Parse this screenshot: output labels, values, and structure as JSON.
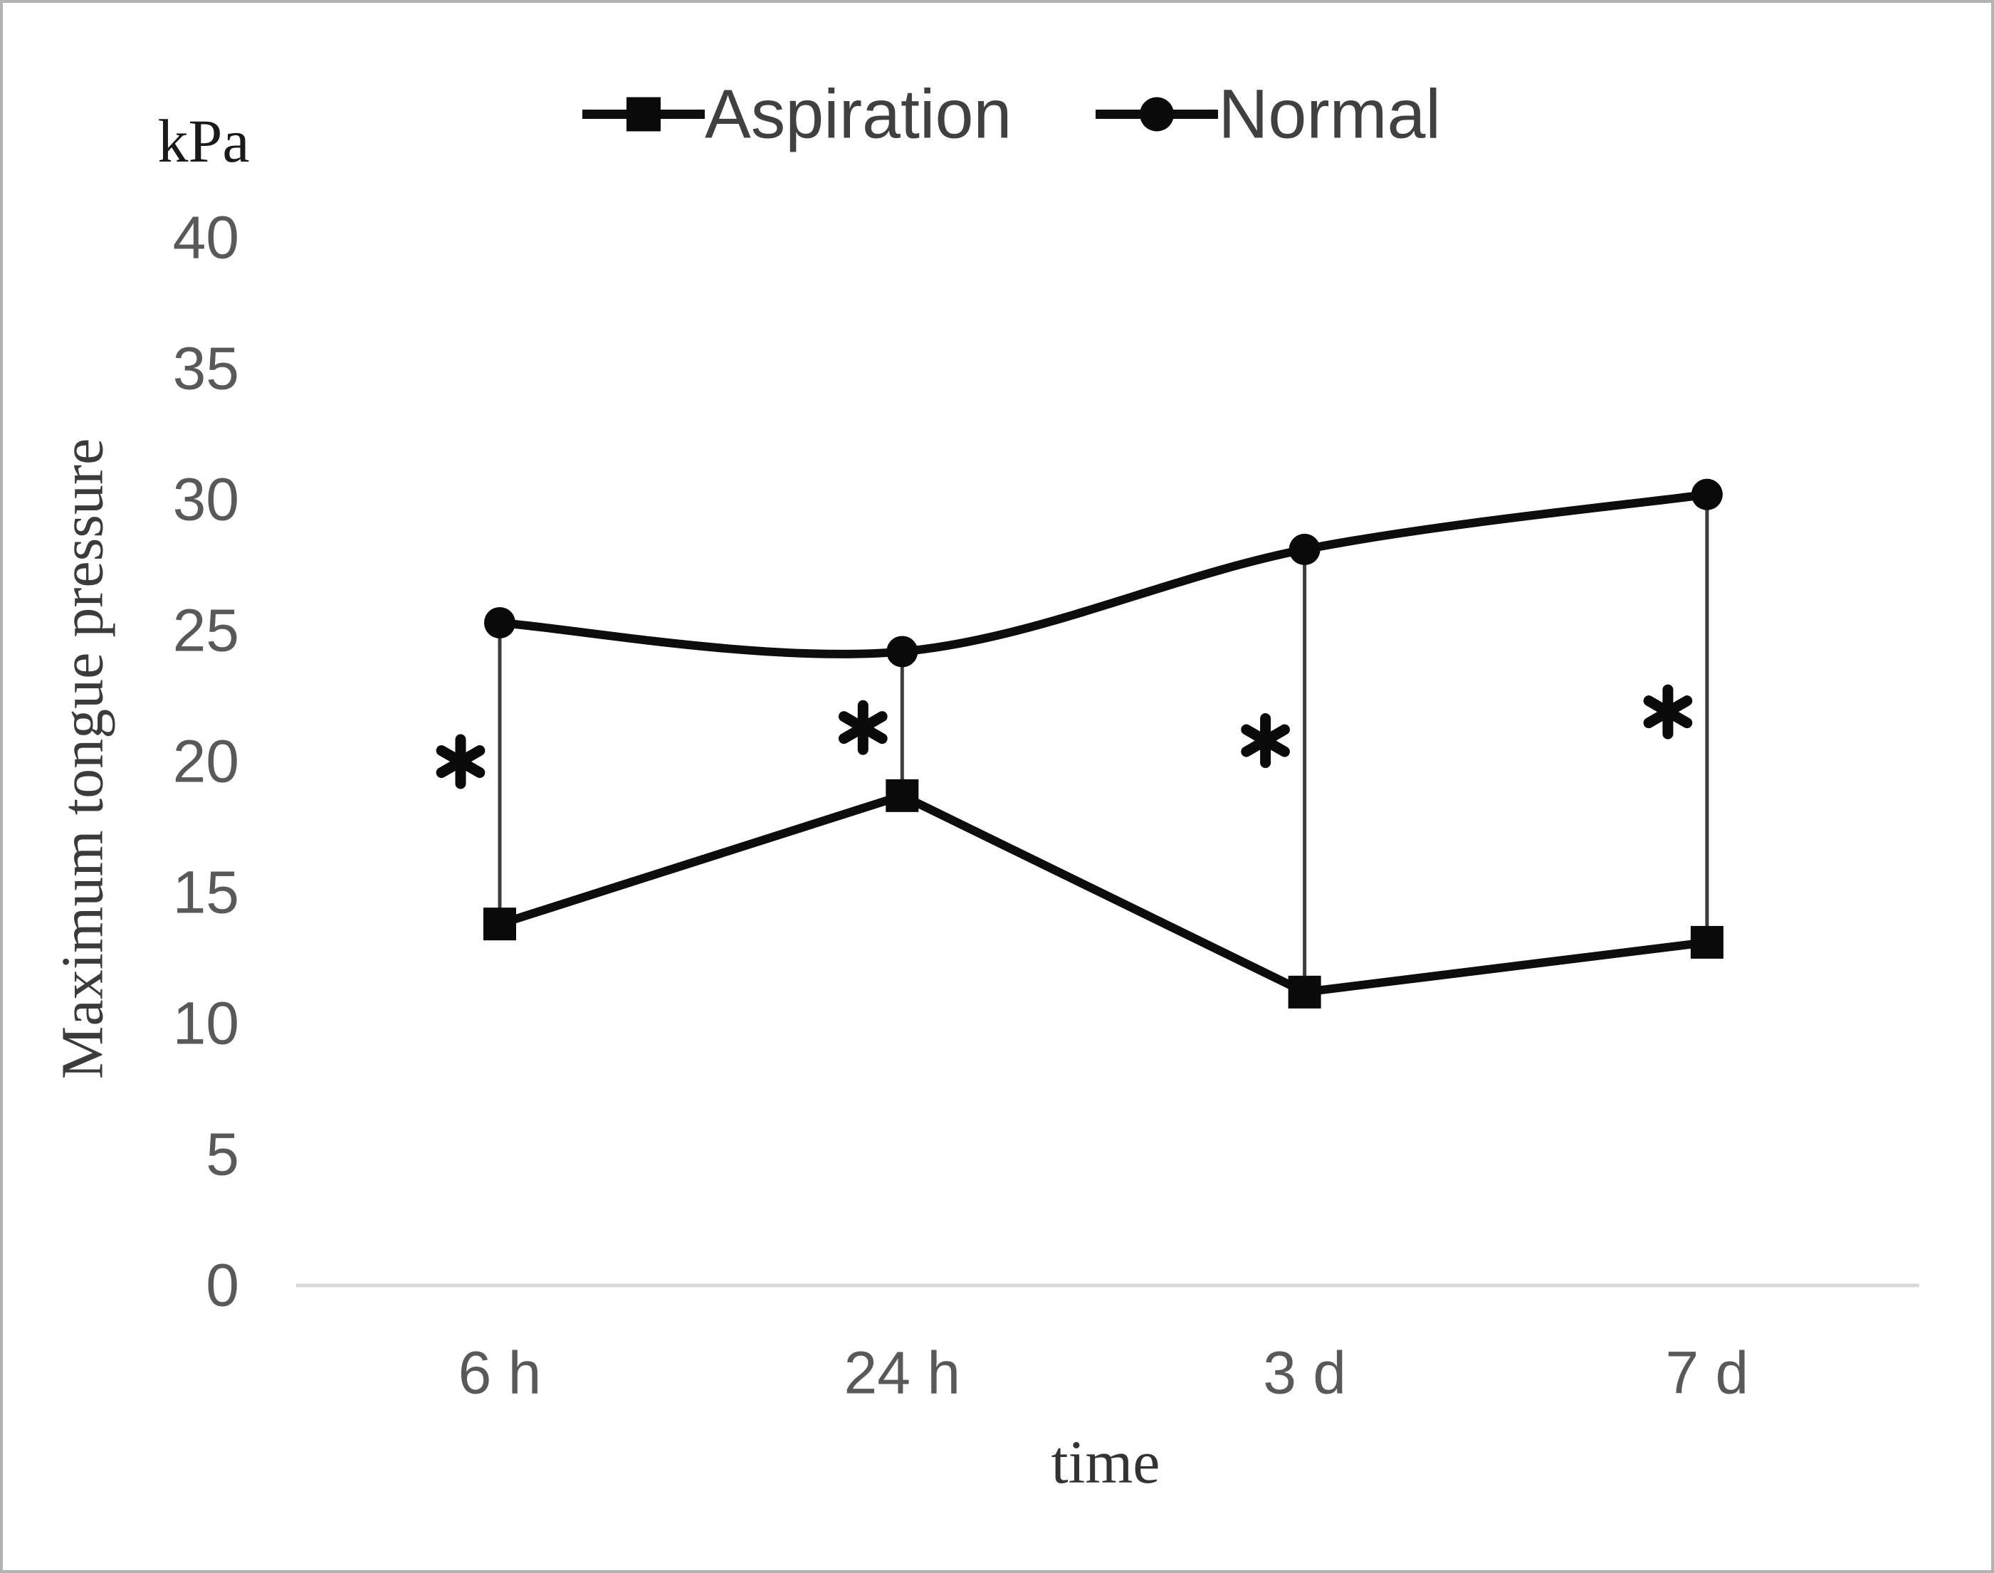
{
  "figure": {
    "unit_label": "kPa",
    "y_axis_title": "Maximum tongue pressure",
    "x_axis_title": "time"
  },
  "legend": {
    "position": "top-center",
    "items": [
      {
        "label": "Aspiration",
        "marker": "square"
      },
      {
        "label": "Normal",
        "marker": "circle"
      }
    ]
  },
  "chart_data": {
    "type": "line",
    "title": "",
    "unit": "kPa",
    "xlabel": "time",
    "ylabel": "Maximum tongue pressure",
    "categories": [
      "6 h",
      "24 h",
      "3 d",
      "7 d"
    ],
    "series": [
      {
        "name": "Aspiration",
        "marker": "square",
        "smooth": false,
        "values": [
          13.8,
          18.7,
          11.2,
          13.1
        ]
      },
      {
        "name": "Normal",
        "marker": "circle",
        "smooth": true,
        "values": [
          25.3,
          24.2,
          28.1,
          30.2
        ]
      }
    ],
    "yticks": [
      0,
      5,
      10,
      15,
      20,
      25,
      30,
      35,
      40
    ],
    "ylim": [
      0,
      40
    ],
    "grid": false,
    "legend_position": "top-center",
    "connectors": {
      "between_series": true,
      "note": "thin vertical line joins the two series at every category"
    },
    "annotations": [
      {
        "symbol": "*",
        "category": "6 h",
        "y_kpa": 20.0
      },
      {
        "symbol": "*",
        "category": "24 h",
        "y_kpa": 21.3
      },
      {
        "symbol": "*",
        "category": "3 d",
        "y_kpa": 20.8
      },
      {
        "symbol": "*",
        "category": "7 d",
        "y_kpa": 21.9
      }
    ],
    "colors": {
      "series_line": "#0d0d0d",
      "marker_fill": "#0a0a0a",
      "connector_line": "#3d3d3d",
      "baseline_axis": "#d9d9d9",
      "tick_text": "#595959",
      "legend_text": "#404040",
      "serif_text": "#333333",
      "annotation": "#0a0a0a",
      "frame_border": "#b3b3b3"
    }
  }
}
